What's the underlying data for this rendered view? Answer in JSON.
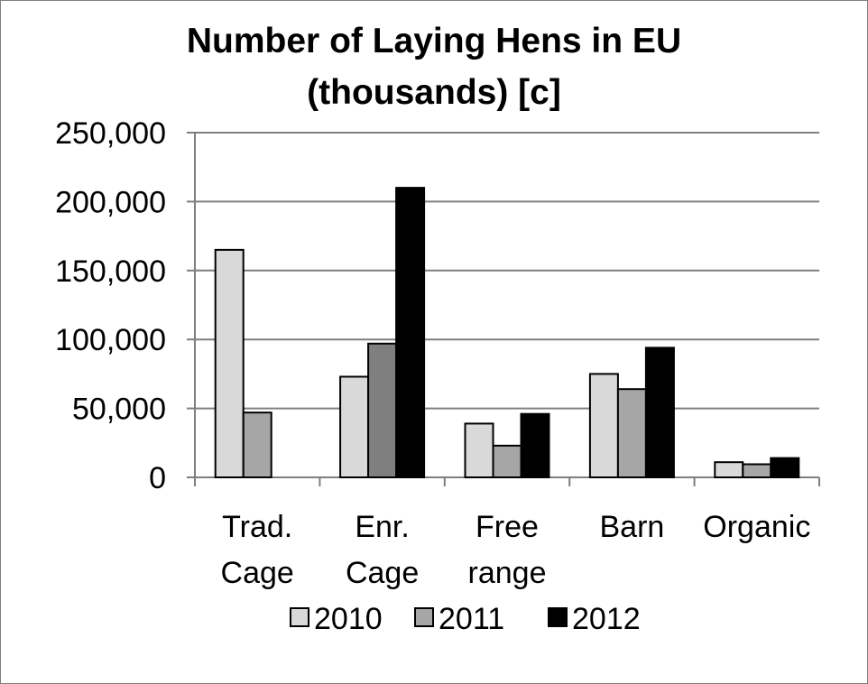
{
  "chart_data": {
    "type": "bar",
    "title_lines": [
      "Number of Laying Hens in EU",
      "(thousands) [c]"
    ],
    "categories": [
      [
        "Trad.",
        "Cage"
      ],
      [
        "Enr.",
        "Cage"
      ],
      [
        "Free",
        "range"
      ],
      [
        "Barn"
      ],
      [
        "Organic"
      ]
    ],
    "series": [
      {
        "name": "2010",
        "color": "#d9d9d9",
        "values": [
          165000,
          73000,
          39000,
          75000,
          11000
        ]
      },
      {
        "name": "2011",
        "color": "#a6a6a6",
        "values": [
          47000,
          97000,
          23000,
          64000,
          9500
        ],
        "colors_by_index": {
          "1": "#7f7f7f"
        }
      },
      {
        "name": "2012",
        "color": "#000000",
        "values": [
          0,
          210000,
          46000,
          94000,
          14000
        ]
      }
    ],
    "ylim": [
      0,
      250000
    ],
    "yticks": [
      0,
      50000,
      100000,
      150000,
      200000,
      250000
    ],
    "ytick_labels": [
      "0",
      "50,000",
      "100,000",
      "150,000",
      "200,000",
      "250,000"
    ],
    "grid": true,
    "legend_position": "bottom"
  }
}
